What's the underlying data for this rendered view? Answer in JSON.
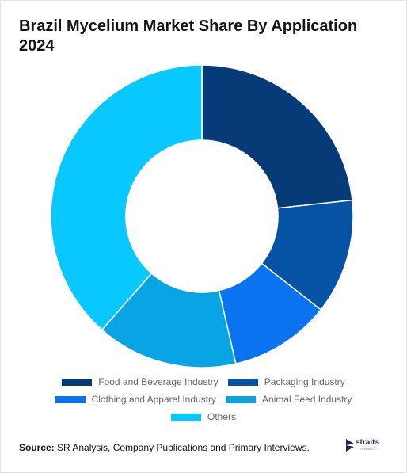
{
  "header": {
    "title": "Brazil Mycelium Market Share By Application 2024"
  },
  "chart_data": {
    "type": "pie",
    "donut": true,
    "categories": [
      "Food and Beverage Industry",
      "Packaging Industry",
      "Clothing and Apparel Industry",
      "Animal Feed Industry",
      "Others"
    ],
    "values": [
      23.3,
      12.3,
      10.8,
      15.1,
      38.5
    ],
    "colors": [
      "#073b78",
      "#0653a6",
      "#0a74f0",
      "#09a4e3",
      "#08c8ff"
    ],
    "legend_position": "bottom"
  },
  "footer": {
    "source_label": "Source:",
    "source_text": " SR Analysis, Company Publications and Primary Interviews.",
    "logo_name": "straits",
    "logo_sub": "research"
  }
}
